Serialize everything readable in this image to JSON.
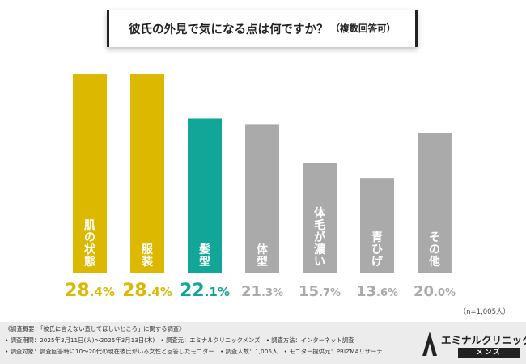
{
  "title": {
    "main": "彼氏の外見で気になる点は何ですか？",
    "sub": "（複数回答可）"
  },
  "sample_note": "（n=1,005人）",
  "colors": {
    "gold": "#DDB800",
    "teal": "#12A699",
    "gray": "#AAAAAA"
  },
  "chart_data": {
    "type": "bar",
    "title": "彼氏の外見で気になる点は何ですか？（複数回答可）",
    "categories": [
      "肌の状態",
      "服装",
      "髪型",
      "体型",
      "体毛が濃い",
      "青ひげ",
      "その他"
    ],
    "values": [
      28.4,
      28.4,
      22.1,
      21.3,
      15.7,
      13.6,
      20.0
    ],
    "value_labels": [
      "28.4%",
      "28.4%",
      "22.1%",
      "21.3%",
      "15.7%",
      "13.6%",
      "20.0%"
    ],
    "bar_colors": [
      "gold",
      "gold",
      "teal",
      "gray",
      "gray",
      "gray",
      "gray"
    ],
    "ylim": [
      0,
      30
    ],
    "xlabel": "",
    "ylabel": ""
  },
  "footer": {
    "lines": [
      "《調査概要：「彼氏に言えない直してほしいところ」に関する調査》",
      "• 調査期間：2025年3月11日(火)～2025年3月13日(木)　• 調査元：エミナルクリニックメンズ　• 調査方法：インターネット調査",
      "• 調査対象：調査回答時に10～20代の現在彼氏がいる女性と回答したモニター　• 調査人数：1,005人　• モニター提供元：PRIZMAリサーチ"
    ]
  },
  "logo": {
    "name": "エミナルクリニック",
    "sub": "メンズ"
  }
}
